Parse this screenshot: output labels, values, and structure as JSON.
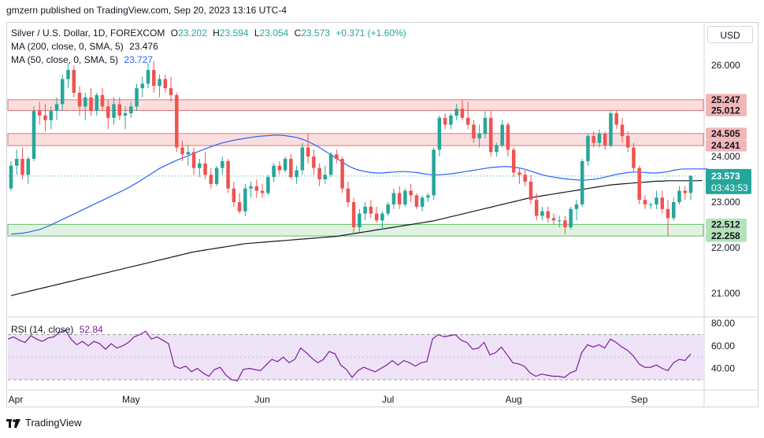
{
  "header": {
    "text": "gmzern published on TradingView.com, Sep 20, 2023 13:16 UTC-4"
  },
  "legend": {
    "symbol": "Silver / U.S. Dollar, 1D, FOREXCOM",
    "o_label": "O",
    "o": "23.202",
    "h_label": "H",
    "h": "23.594",
    "l_label": "L",
    "l": "23.054",
    "c_label": "C",
    "c": "23.573",
    "change": "+0.371 (+1.60%)",
    "ma200_label": "MA (200, close, 0, SMA, 5)",
    "ma200_value": "23.476",
    "ma50_label": "MA (50, close, 0, SMA, 5)",
    "ma50_value": "23.727",
    "rsi_label": "RSI (14, close)",
    "rsi_value": "52.84"
  },
  "currency_button": "USD",
  "footer": {
    "brand": "TradingView"
  },
  "colors": {
    "up": "#26a69a",
    "down": "#ef5350",
    "ma50": "#2962ff",
    "ma200": "#131722",
    "rsi": "#7e1e9c",
    "red_zone": "#f8d3d3",
    "green_zone": "#d4efd6"
  },
  "chart_data": {
    "type": "candlestick",
    "instrument": "Silver / U.S. Dollar",
    "timeframe": "1D",
    "x_tick_labels": [
      "Apr",
      "May",
      "Jun",
      "Jul",
      "Aug",
      "Sep"
    ],
    "price_ticks": [
      "26.000",
      "25.000",
      "24.000",
      "23.000",
      "22.000",
      "21.000"
    ],
    "ylim": [
      20.5,
      26.4
    ],
    "zones": [
      {
        "type": "resistance",
        "top": 25.247,
        "bottom": 25.012,
        "top_label": "25.247",
        "bottom_label": "25.012"
      },
      {
        "type": "resistance",
        "top": 24.505,
        "bottom": 24.241,
        "top_label": "24.505",
        "bottom_label": "24.241"
      },
      {
        "type": "support",
        "top": 22.512,
        "bottom": 22.258,
        "top_label": "22.512",
        "bottom_label": "22.258"
      }
    ],
    "last_price_label": "23.573",
    "countdown_label": "03:43:53",
    "candles": [
      {
        "o": 23.3,
        "h": 23.9,
        "l": 23.25,
        "c": 23.8
      },
      {
        "o": 23.8,
        "h": 24.15,
        "l": 23.6,
        "c": 23.95
      },
      {
        "o": 23.95,
        "h": 24.2,
        "l": 23.5,
        "c": 23.6
      },
      {
        "o": 23.6,
        "h": 24.0,
        "l": 23.4,
        "c": 23.95
      },
      {
        "o": 23.95,
        "h": 25.1,
        "l": 23.9,
        "c": 25.0
      },
      {
        "o": 25.0,
        "h": 25.2,
        "l": 24.7,
        "c": 24.9
      },
      {
        "o": 24.9,
        "h": 25.15,
        "l": 24.55,
        "c": 24.8
      },
      {
        "o": 24.8,
        "h": 25.1,
        "l": 24.6,
        "c": 25.0
      },
      {
        "o": 25.0,
        "h": 25.3,
        "l": 24.8,
        "c": 25.15
      },
      {
        "o": 25.15,
        "h": 25.8,
        "l": 25.0,
        "c": 25.7
      },
      {
        "o": 25.7,
        "h": 26.05,
        "l": 25.5,
        "c": 25.9
      },
      {
        "o": 25.9,
        "h": 26.0,
        "l": 25.3,
        "c": 25.4
      },
      {
        "o": 25.4,
        "h": 25.55,
        "l": 24.9,
        "c": 25.1
      },
      {
        "o": 25.1,
        "h": 25.4,
        "l": 24.8,
        "c": 25.3
      },
      {
        "o": 25.3,
        "h": 25.5,
        "l": 24.9,
        "c": 25.0
      },
      {
        "o": 25.0,
        "h": 25.4,
        "l": 24.9,
        "c": 25.35
      },
      {
        "o": 25.35,
        "h": 25.5,
        "l": 25.0,
        "c": 25.1
      },
      {
        "o": 25.1,
        "h": 25.25,
        "l": 24.6,
        "c": 24.85
      },
      {
        "o": 24.85,
        "h": 25.3,
        "l": 24.7,
        "c": 25.15
      },
      {
        "o": 25.15,
        "h": 25.3,
        "l": 24.8,
        "c": 24.9
      },
      {
        "o": 24.9,
        "h": 25.1,
        "l": 24.6,
        "c": 24.95
      },
      {
        "o": 24.95,
        "h": 25.2,
        "l": 24.85,
        "c": 25.1
      },
      {
        "o": 25.1,
        "h": 25.6,
        "l": 25.0,
        "c": 25.5
      },
      {
        "o": 25.5,
        "h": 25.75,
        "l": 25.3,
        "c": 25.6
      },
      {
        "o": 25.6,
        "h": 26.05,
        "l": 25.5,
        "c": 25.9
      },
      {
        "o": 25.9,
        "h": 26.1,
        "l": 25.4,
        "c": 25.55
      },
      {
        "o": 25.55,
        "h": 25.8,
        "l": 25.3,
        "c": 25.7
      },
      {
        "o": 25.7,
        "h": 25.8,
        "l": 25.4,
        "c": 25.5
      },
      {
        "o": 25.5,
        "h": 25.75,
        "l": 25.2,
        "c": 25.35
      },
      {
        "o": 25.35,
        "h": 25.4,
        "l": 24.1,
        "c": 24.2
      },
      {
        "o": 24.2,
        "h": 24.35,
        "l": 23.9,
        "c": 24.05
      },
      {
        "o": 24.05,
        "h": 24.25,
        "l": 23.8,
        "c": 24.1
      },
      {
        "o": 24.1,
        "h": 24.2,
        "l": 23.6,
        "c": 23.75
      },
      {
        "o": 23.75,
        "h": 23.95,
        "l": 23.55,
        "c": 23.85
      },
      {
        "o": 23.85,
        "h": 24.1,
        "l": 23.5,
        "c": 23.6
      },
      {
        "o": 23.6,
        "h": 23.75,
        "l": 23.3,
        "c": 23.4
      },
      {
        "o": 23.4,
        "h": 23.8,
        "l": 23.35,
        "c": 23.75
      },
      {
        "o": 23.75,
        "h": 24.0,
        "l": 23.6,
        "c": 23.9
      },
      {
        "o": 23.9,
        "h": 23.95,
        "l": 23.2,
        "c": 23.3
      },
      {
        "o": 23.3,
        "h": 23.45,
        "l": 22.9,
        "c": 23.0
      },
      {
        "o": 23.0,
        "h": 23.2,
        "l": 22.75,
        "c": 22.8
      },
      {
        "o": 22.8,
        "h": 23.4,
        "l": 22.7,
        "c": 23.3
      },
      {
        "o": 23.3,
        "h": 23.45,
        "l": 23.1,
        "c": 23.35
      },
      {
        "o": 23.35,
        "h": 23.5,
        "l": 23.1,
        "c": 23.25
      },
      {
        "o": 23.25,
        "h": 23.4,
        "l": 23.1,
        "c": 23.2
      },
      {
        "o": 23.2,
        "h": 23.6,
        "l": 23.15,
        "c": 23.55
      },
      {
        "o": 23.55,
        "h": 23.85,
        "l": 23.45,
        "c": 23.8
      },
      {
        "o": 23.8,
        "h": 23.9,
        "l": 23.6,
        "c": 23.7
      },
      {
        "o": 23.7,
        "h": 24.0,
        "l": 23.65,
        "c": 23.95
      },
      {
        "o": 23.95,
        "h": 24.05,
        "l": 23.5,
        "c": 23.55
      },
      {
        "o": 23.55,
        "h": 23.8,
        "l": 23.4,
        "c": 23.7
      },
      {
        "o": 23.7,
        "h": 24.3,
        "l": 23.6,
        "c": 24.2
      },
      {
        "o": 24.2,
        "h": 24.5,
        "l": 23.85,
        "c": 24.0
      },
      {
        "o": 24.0,
        "h": 24.15,
        "l": 23.6,
        "c": 23.75
      },
      {
        "o": 23.75,
        "h": 23.85,
        "l": 23.35,
        "c": 23.5
      },
      {
        "o": 23.5,
        "h": 23.8,
        "l": 23.4,
        "c": 23.6
      },
      {
        "o": 23.6,
        "h": 24.1,
        "l": 23.55,
        "c": 24.05
      },
      {
        "o": 24.05,
        "h": 24.15,
        "l": 23.85,
        "c": 23.95
      },
      {
        "o": 23.95,
        "h": 24.0,
        "l": 23.2,
        "c": 23.3
      },
      {
        "o": 23.3,
        "h": 23.45,
        "l": 22.9,
        "c": 23.0
      },
      {
        "o": 23.0,
        "h": 23.1,
        "l": 22.3,
        "c": 22.45
      },
      {
        "o": 22.45,
        "h": 22.85,
        "l": 22.35,
        "c": 22.75
      },
      {
        "o": 22.75,
        "h": 23.0,
        "l": 22.6,
        "c": 22.9
      },
      {
        "o": 22.9,
        "h": 23.05,
        "l": 22.65,
        "c": 22.75
      },
      {
        "o": 22.75,
        "h": 22.9,
        "l": 22.55,
        "c": 22.6
      },
      {
        "o": 22.6,
        "h": 22.8,
        "l": 22.4,
        "c": 22.75
      },
      {
        "o": 22.75,
        "h": 23.0,
        "l": 22.7,
        "c": 22.95
      },
      {
        "o": 22.95,
        "h": 23.3,
        "l": 22.85,
        "c": 23.2
      },
      {
        "o": 23.2,
        "h": 23.35,
        "l": 22.85,
        "c": 22.95
      },
      {
        "o": 22.95,
        "h": 23.3,
        "l": 22.9,
        "c": 23.25
      },
      {
        "o": 23.25,
        "h": 23.4,
        "l": 23.0,
        "c": 23.15
      },
      {
        "o": 23.15,
        "h": 23.2,
        "l": 22.85,
        "c": 22.9
      },
      {
        "o": 22.9,
        "h": 23.15,
        "l": 22.8,
        "c": 23.1
      },
      {
        "o": 23.1,
        "h": 23.2,
        "l": 23.0,
        "c": 23.15
      },
      {
        "o": 23.15,
        "h": 24.2,
        "l": 23.05,
        "c": 24.15
      },
      {
        "o": 24.15,
        "h": 24.9,
        "l": 24.0,
        "c": 24.85
      },
      {
        "o": 24.85,
        "h": 24.95,
        "l": 24.6,
        "c": 24.7
      },
      {
        "o": 24.7,
        "h": 24.95,
        "l": 24.6,
        "c": 24.9
      },
      {
        "o": 24.9,
        "h": 25.15,
        "l": 24.8,
        "c": 25.05
      },
      {
        "o": 25.05,
        "h": 25.25,
        "l": 24.8,
        "c": 24.85
      },
      {
        "o": 24.85,
        "h": 25.2,
        "l": 24.6,
        "c": 24.7
      },
      {
        "o": 24.7,
        "h": 24.8,
        "l": 24.3,
        "c": 24.4
      },
      {
        "o": 24.4,
        "h": 24.7,
        "l": 24.2,
        "c": 24.5
      },
      {
        "o": 24.5,
        "h": 25.0,
        "l": 24.4,
        "c": 24.85
      },
      {
        "o": 24.85,
        "h": 25.0,
        "l": 24.0,
        "c": 24.1
      },
      {
        "o": 24.1,
        "h": 24.3,
        "l": 24.0,
        "c": 24.25
      },
      {
        "o": 24.25,
        "h": 24.8,
        "l": 24.2,
        "c": 24.7
      },
      {
        "o": 24.7,
        "h": 24.75,
        "l": 24.0,
        "c": 24.15
      },
      {
        "o": 24.15,
        "h": 24.2,
        "l": 23.55,
        "c": 23.65
      },
      {
        "o": 23.65,
        "h": 23.75,
        "l": 23.4,
        "c": 23.6
      },
      {
        "o": 23.6,
        "h": 23.7,
        "l": 23.35,
        "c": 23.45
      },
      {
        "o": 23.45,
        "h": 23.6,
        "l": 22.95,
        "c": 23.05
      },
      {
        "o": 23.05,
        "h": 23.2,
        "l": 22.6,
        "c": 22.7
      },
      {
        "o": 22.7,
        "h": 22.9,
        "l": 22.6,
        "c": 22.8
      },
      {
        "o": 22.8,
        "h": 22.9,
        "l": 22.55,
        "c": 22.65
      },
      {
        "o": 22.65,
        "h": 22.75,
        "l": 22.5,
        "c": 22.6
      },
      {
        "o": 22.6,
        "h": 22.7,
        "l": 22.45,
        "c": 22.6
      },
      {
        "o": 22.6,
        "h": 22.7,
        "l": 22.3,
        "c": 22.45
      },
      {
        "o": 22.45,
        "h": 22.9,
        "l": 22.4,
        "c": 22.85
      },
      {
        "o": 22.85,
        "h": 23.05,
        "l": 22.6,
        "c": 22.95
      },
      {
        "o": 22.95,
        "h": 23.95,
        "l": 22.9,
        "c": 23.9
      },
      {
        "o": 23.9,
        "h": 24.5,
        "l": 23.8,
        "c": 24.45
      },
      {
        "o": 24.45,
        "h": 24.55,
        "l": 24.2,
        "c": 24.3
      },
      {
        "o": 24.3,
        "h": 24.6,
        "l": 24.2,
        "c": 24.5
      },
      {
        "o": 24.5,
        "h": 24.55,
        "l": 24.15,
        "c": 24.25
      },
      {
        "o": 24.25,
        "h": 25.0,
        "l": 24.2,
        "c": 24.95
      },
      {
        "o": 24.95,
        "h": 25.0,
        "l": 24.6,
        "c": 24.7
      },
      {
        "o": 24.7,
        "h": 24.85,
        "l": 24.3,
        "c": 24.45
      },
      {
        "o": 24.45,
        "h": 24.55,
        "l": 24.1,
        "c": 24.2
      },
      {
        "o": 24.2,
        "h": 24.3,
        "l": 23.65,
        "c": 23.75
      },
      {
        "o": 23.75,
        "h": 23.8,
        "l": 22.95,
        "c": 23.05
      },
      {
        "o": 23.05,
        "h": 23.15,
        "l": 22.85,
        "c": 22.95
      },
      {
        "o": 22.95,
        "h": 23.0,
        "l": 22.85,
        "c": 22.95
      },
      {
        "o": 22.95,
        "h": 23.25,
        "l": 22.85,
        "c": 23.1
      },
      {
        "o": 23.1,
        "h": 23.25,
        "l": 22.75,
        "c": 22.85
      },
      {
        "o": 22.85,
        "h": 23.05,
        "l": 22.25,
        "c": 22.65
      },
      {
        "o": 22.65,
        "h": 23.1,
        "l": 22.6,
        "c": 23.0
      },
      {
        "o": 23.0,
        "h": 23.35,
        "l": 22.95,
        "c": 23.25
      },
      {
        "o": 23.25,
        "h": 23.35,
        "l": 23.05,
        "c": 23.2
      },
      {
        "o": 23.202,
        "h": 23.594,
        "l": 23.054,
        "c": 23.573
      }
    ],
    "ma50": [
      22.3,
      22.31,
      22.32,
      22.34,
      22.37,
      22.4,
      22.45,
      22.5,
      22.56,
      22.62,
      22.68,
      22.74,
      22.8,
      22.86,
      22.92,
      22.98,
      23.04,
      23.1,
      23.16,
      23.22,
      23.28,
      23.35,
      23.42,
      23.5,
      23.58,
      23.66,
      23.74,
      23.8,
      23.86,
      23.92,
      23.97,
      24.02,
      24.07,
      24.12,
      24.17,
      24.22,
      24.26,
      24.3,
      24.33,
      24.36,
      24.38,
      24.4,
      24.42,
      24.44,
      24.45,
      24.46,
      24.47,
      24.47,
      24.46,
      24.44,
      24.42,
      24.38,
      24.33,
      24.27,
      24.2,
      24.12,
      24.04,
      23.96,
      23.88,
      23.8,
      23.74,
      23.7,
      23.67,
      23.65,
      23.64,
      23.64,
      23.65,
      23.66,
      23.67,
      23.67,
      23.66,
      23.65,
      23.63,
      23.61,
      23.6,
      23.6,
      23.61,
      23.62,
      23.64,
      23.66,
      23.68,
      23.7,
      23.72,
      23.74,
      23.76,
      23.77,
      23.78,
      23.78,
      23.77,
      23.75,
      23.72,
      23.68,
      23.64,
      23.6,
      23.57,
      23.55,
      23.53,
      23.51,
      23.5,
      23.49,
      23.48,
      23.49,
      23.5,
      23.52,
      23.55,
      23.58,
      23.61,
      23.63,
      23.65,
      23.66,
      23.66,
      23.65,
      23.64,
      23.64,
      23.65,
      23.67,
      23.7,
      23.72,
      23.73,
      23.73,
      23.73,
      23.73,
      23.727
    ],
    "ma200": [
      20.95,
      20.98,
      21.01,
      21.04,
      21.07,
      21.1,
      21.13,
      21.16,
      21.19,
      21.22,
      21.25,
      21.28,
      21.31,
      21.34,
      21.37,
      21.4,
      21.43,
      21.46,
      21.49,
      21.52,
      21.55,
      21.58,
      21.61,
      21.64,
      21.67,
      21.7,
      21.73,
      21.76,
      21.79,
      21.82,
      21.85,
      21.88,
      21.91,
      21.93,
      21.95,
      21.97,
      21.99,
      22.01,
      22.03,
      22.05,
      22.07,
      22.09,
      22.1,
      22.11,
      22.12,
      22.13,
      22.14,
      22.15,
      22.16,
      22.17,
      22.18,
      22.19,
      22.2,
      22.21,
      22.22,
      22.23,
      22.24,
      22.25,
      22.27,
      22.29,
      22.31,
      22.33,
      22.35,
      22.37,
      22.39,
      22.41,
      22.43,
      22.45,
      22.47,
      22.49,
      22.51,
      22.53,
      22.55,
      22.57,
      22.59,
      22.62,
      22.65,
      22.68,
      22.71,
      22.74,
      22.77,
      22.8,
      22.83,
      22.86,
      22.89,
      22.92,
      22.95,
      22.98,
      23.01,
      23.04,
      23.07,
      23.1,
      23.12,
      23.14,
      23.16,
      23.18,
      23.2,
      23.22,
      23.24,
      23.26,
      23.28,
      23.3,
      23.32,
      23.34,
      23.36,
      23.38,
      23.39,
      23.4,
      23.41,
      23.42,
      23.43,
      23.44,
      23.45,
      23.46,
      23.46,
      23.47,
      23.47,
      23.47,
      23.47,
      23.47,
      23.47,
      23.476
    ],
    "rsi": {
      "ylim": [
        25,
        85
      ],
      "ticks": [
        "80.00",
        "60.00",
        "40.00"
      ],
      "overbought": 70,
      "oversold": 30,
      "values": [
        66,
        68,
        65,
        63,
        69,
        66,
        64,
        67,
        68,
        72,
        74,
        66,
        61,
        64,
        60,
        64,
        62,
        57,
        62,
        58,
        60,
        63,
        68,
        70,
        73,
        66,
        68,
        65,
        62,
        42,
        40,
        42,
        37,
        40,
        36,
        33,
        39,
        41,
        34,
        30,
        29,
        39,
        40,
        39,
        38,
        43,
        48,
        46,
        50,
        45,
        48,
        58,
        54,
        49,
        45,
        48,
        55,
        53,
        43,
        39,
        32,
        38,
        41,
        39,
        37,
        40,
        43,
        47,
        43,
        47,
        45,
        42,
        45,
        46,
        66,
        70,
        68,
        69,
        70,
        65,
        63,
        57,
        58,
        63,
        52,
        54,
        59,
        52,
        45,
        44,
        42,
        36,
        33,
        35,
        34,
        33,
        33,
        32,
        36,
        38,
        54,
        61,
        59,
        61,
        58,
        66,
        63,
        59,
        56,
        51,
        44,
        41,
        41,
        43,
        40,
        38,
        45,
        48,
        47,
        52.84
      ]
    }
  }
}
